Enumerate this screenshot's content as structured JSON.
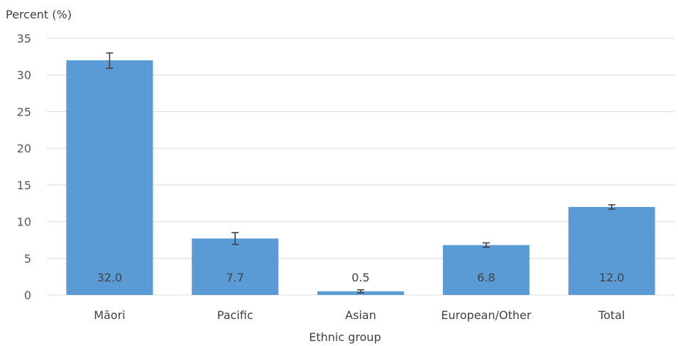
{
  "chart_data": {
    "type": "bar",
    "ylabel": "Percent (%)",
    "xlabel": "Ethnic group",
    "ylim": [
      0,
      35
    ],
    "yticks": [
      0,
      5,
      10,
      15,
      20,
      25,
      30,
      35
    ],
    "categories": [
      "Māori",
      "Pacific",
      "Asian",
      "European/Other",
      "Total"
    ],
    "values": [
      32.0,
      7.7,
      0.5,
      6.8,
      12.0
    ],
    "value_labels": [
      "32.0",
      "7.7",
      "0.5",
      "6.8",
      "12.0"
    ],
    "error_bars": [
      {
        "low": 30.9,
        "high": 33.0
      },
      {
        "low": 6.9,
        "high": 8.5
      },
      {
        "low": 0.3,
        "high": 0.7
      },
      {
        "low": 6.5,
        "high": 7.1
      },
      {
        "low": 11.7,
        "high": 12.3
      }
    ],
    "grid": true,
    "bar_color": "#5b9bd5",
    "error_bar_color": "#404040",
    "gridline_color": "#d9d9d9"
  }
}
